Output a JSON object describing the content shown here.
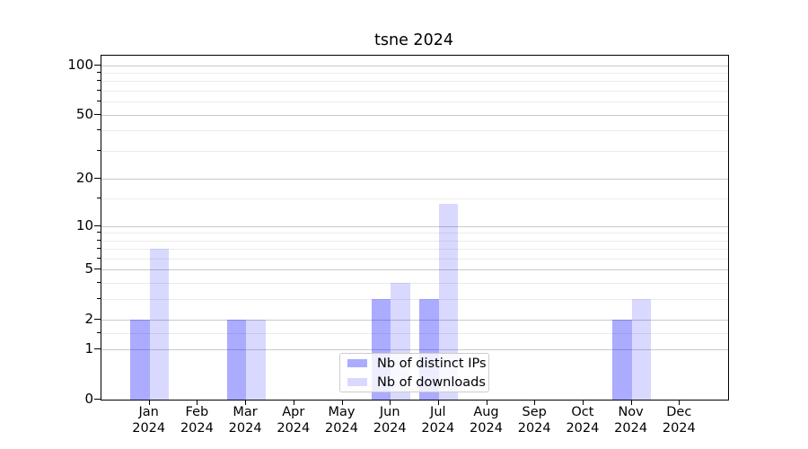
{
  "chart_data": {
    "type": "bar",
    "title": "tsne 2024",
    "categories": [
      "Jan 2024",
      "Feb 2024",
      "Mar 2024",
      "Apr 2024",
      "May 2024",
      "Jun 2024",
      "Jul 2024",
      "Aug 2024",
      "Sep 2024",
      "Oct 2024",
      "Nov 2024",
      "Dec 2024"
    ],
    "x": {
      "months": [
        "Jan",
        "Feb",
        "Mar",
        "Apr",
        "May",
        "Jun",
        "Jul",
        "Aug",
        "Sep",
        "Oct",
        "Nov",
        "Dec"
      ],
      "year": "2024"
    },
    "series": [
      {
        "name": "Nb of distinct IPs",
        "color": "rgba(0,0,255,0.33)",
        "values": [
          2,
          0,
          2,
          0,
          0,
          3,
          3,
          0,
          0,
          0,
          2,
          0
        ]
      },
      {
        "name": "Nb of downloads",
        "color": "rgba(0,0,255,0.15)",
        "values": [
          7,
          0,
          2,
          0,
          0,
          4,
          14,
          0,
          0,
          0,
          3,
          0
        ]
      }
    ],
    "y_axis": {
      "scale": "log1p",
      "major_ticks": [
        100,
        50,
        20,
        10,
        5,
        2,
        1,
        0
      ],
      "minor_ticks": [
        1.5,
        3,
        4,
        6,
        7,
        8,
        9,
        15,
        30,
        40,
        60,
        70,
        80,
        90
      ],
      "ylim": [
        0,
        113
      ]
    },
    "legend": {
      "position": "lower center",
      "entries": [
        "Nb of distinct IPs",
        "Nb of downloads"
      ]
    },
    "grid": "both",
    "colors": {
      "bar_distinct_ips": "rgba(0,0,255,0.33)",
      "bar_downloads": "rgba(0,0,255,0.15)",
      "major_grid": "#c9c9c9",
      "minor_grid": "#ebebeb",
      "axis": "#000000",
      "background": "#ffffff",
      "legend_border": "#cccccc"
    }
  }
}
